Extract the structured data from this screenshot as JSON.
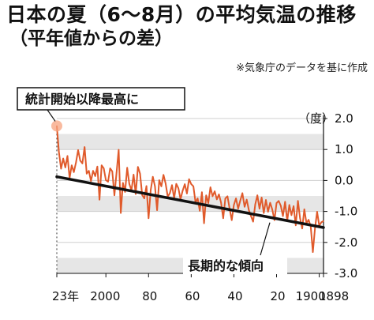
{
  "title": "日本の夏（6～8月）の平均気温の推移",
  "subtitle": "（平年値からの差）",
  "source": "※気象庁のデータを基に作成",
  "colors": {
    "series": "#e05a2b",
    "trend": "#111111",
    "band": "#e6e6e6",
    "highlight": "#f7a37f"
  },
  "chart_data": {
    "type": "line",
    "title": "日本の夏（6～8月）の平均気温の推移",
    "subtitle": "（平年値からの差）",
    "ylabel": "（度）",
    "xlabel": "",
    "x_direction": "reversed",
    "xlim": [
      1898,
      2023
    ],
    "ylim": [
      -3.0,
      2.0
    ],
    "y_ticks": [
      2.0,
      1.0,
      0.0,
      -1.0,
      -2.0,
      -3.0
    ],
    "y_tick_labels": [
      "2.0",
      "1.0",
      "0.0",
      "-1.0",
      "-2.0",
      "-3.0"
    ],
    "x_ticks": [
      2023,
      2000,
      1980,
      1960,
      1940,
      1920,
      1900,
      1898
    ],
    "x_tick_labels": [
      "23年",
      "2000",
      "80",
      "60",
      "40",
      "20",
      "1900",
      "1898"
    ],
    "grid": "horizontal-bands",
    "series": [
      {
        "x": [
          2023,
          2022,
          2021,
          2020,
          2019,
          2018,
          2017,
          2016,
          2015,
          2014,
          2013,
          2012,
          2011,
          2010,
          2009,
          2008,
          2007,
          2006,
          2005,
          2004,
          2003,
          2002,
          2001,
          2000,
          1999,
          1998,
          1997,
          1996,
          1995,
          1994,
          1993,
          1992,
          1991,
          1990,
          1989,
          1988,
          1987,
          1986,
          1985,
          1984,
          1983,
          1982,
          1981,
          1980,
          1979,
          1978,
          1977,
          1976,
          1975,
          1974,
          1973,
          1972,
          1971,
          1970,
          1969,
          1968,
          1967,
          1966,
          1965,
          1964,
          1963,
          1962,
          1961,
          1960,
          1959,
          1958,
          1957,
          1956,
          1955,
          1954,
          1953,
          1952,
          1951,
          1950,
          1949,
          1948,
          1947,
          1946,
          1945,
          1944,
          1943,
          1942,
          1941,
          1940,
          1939,
          1938,
          1937,
          1936,
          1935,
          1934,
          1933,
          1932,
          1931,
          1930,
          1929,
          1928,
          1927,
          1926,
          1925,
          1924,
          1923,
          1922,
          1921,
          1920,
          1919,
          1918,
          1917,
          1916,
          1915,
          1914,
          1913,
          1912,
          1911,
          1910,
          1909,
          1908,
          1907,
          1906,
          1905,
          1904,
          1903,
          1902,
          1901,
          1900,
          1899,
          1898
        ],
        "values": [
          1.76,
          0.91,
          0.38,
          0.71,
          0.42,
          0.79,
          0.08,
          0.49,
          0.27,
          0.58,
          0.98,
          0.64,
          0.55,
          1.08,
          0.22,
          0.31,
          -0.02,
          0.31,
          0.14,
          0.45,
          -0.62,
          0.49,
          0.39,
          0.01,
          -0.04,
          0.39,
          0.29,
          -0.48,
          0.25,
          0.99,
          -1.05,
          -0.08,
          -0.37,
          0.41,
          -0.11,
          -0.32,
          0.19,
          -0.44,
          0.44,
          0.22,
          -0.47,
          -0.58,
          -0.18,
          -1.22,
          -0.31,
          0.12,
          -0.19,
          -0.96,
          0.01,
          -0.19,
          0.18,
          -0.1,
          -0.52,
          -0.41,
          -0.15,
          -0.58,
          -0.11,
          -0.25,
          -0.61,
          -0.33,
          -0.12,
          -0.42,
          0.04,
          -0.12,
          -0.19,
          -0.71,
          -0.58,
          -0.98,
          -0.38,
          -1.38,
          -0.48,
          -0.73,
          -0.22,
          -0.51,
          -0.35,
          -0.61,
          -0.45,
          -0.72,
          -1.22,
          -0.58,
          -0.51,
          -0.91,
          -1.28,
          -0.79,
          -0.58,
          -0.91,
          -0.65,
          -0.41,
          -0.85,
          -0.62,
          -0.96,
          -1.15,
          -1.33,
          -0.77,
          -0.48,
          -0.91,
          -0.55,
          -1.05,
          -0.63,
          -1.01,
          -0.72,
          -0.94,
          -1.28,
          -0.73,
          -0.66,
          -0.82,
          -1.15,
          -0.69,
          -1.31,
          -0.79,
          -1.12,
          -0.83,
          -1.45,
          -0.66,
          -1.22,
          -1.55,
          -0.93,
          -1.38,
          -1.27,
          -1.48,
          -2.31,
          -1.55,
          -1.01,
          -1.46,
          -1.35,
          -1.31
        ]
      }
    ],
    "trend": {
      "x": [
        2023,
        1898
      ],
      "values": [
        0.12,
        -1.52
      ]
    }
  },
  "annotations": {
    "record_label": "統計開始以降最高に",
    "trend_label": "長期的な傾向"
  }
}
